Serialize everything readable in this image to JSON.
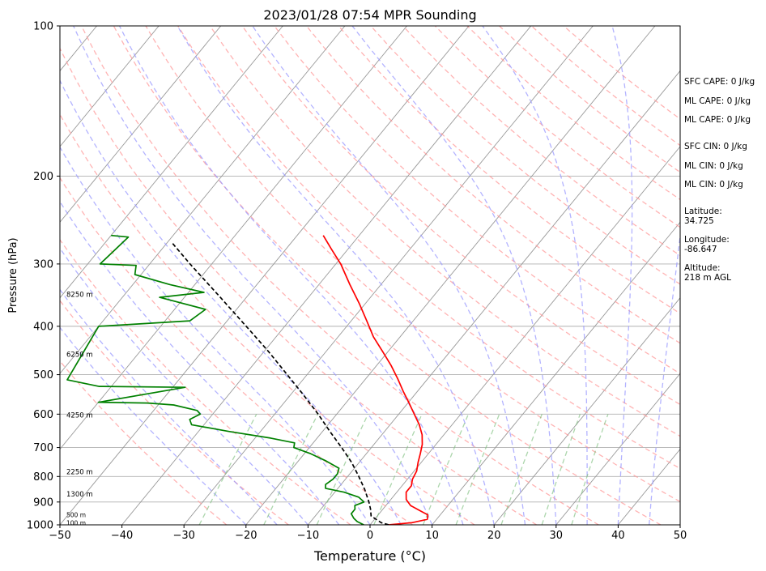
{
  "chart_data": {
    "type": "line",
    "title": "2023/01/28 07:54 MPR Sounding",
    "xlabel": "Temperature (°C)",
    "ylabel": "Pressure (hPa)",
    "xlim": [
      -50,
      50
    ],
    "ylim": [
      1000,
      100
    ],
    "y_scale": "log",
    "grid": true,
    "x_ticks": [
      "−50",
      "−40",
      "−30",
      "−20",
      "−10",
      "0",
      "10",
      "20",
      "30",
      "40",
      "50"
    ],
    "y_ticks": [
      "100",
      "200",
      "300",
      "400",
      "500",
      "600",
      "700",
      "800",
      "900",
      "1000"
    ],
    "series": [
      {
        "role": "temperature",
        "color": "#ff0000",
        "points": [
          [
            1000,
            3.0
          ],
          [
            990,
            6.5
          ],
          [
            975,
            8.5
          ],
          [
            955,
            8.0
          ],
          [
            935,
            6.0
          ],
          [
            915,
            4.0
          ],
          [
            890,
            2.5
          ],
          [
            860,
            1.5
          ],
          [
            835,
            1.5
          ],
          [
            810,
            0.8
          ],
          [
            780,
            0.4
          ],
          [
            750,
            -0.5
          ],
          [
            720,
            -1.3
          ],
          [
            690,
            -2.2
          ],
          [
            660,
            -3.5
          ],
          [
            630,
            -5.3
          ],
          [
            600,
            -7.5
          ],
          [
            570,
            -9.8
          ],
          [
            540,
            -12.3
          ],
          [
            510,
            -14.8
          ],
          [
            480,
            -17.6
          ],
          [
            450,
            -20.8
          ],
          [
            420,
            -24.3
          ],
          [
            390,
            -27.5
          ],
          [
            360,
            -31.0
          ],
          [
            330,
            -35.0
          ],
          [
            300,
            -39.2
          ],
          [
            280,
            -42.7
          ],
          [
            263,
            -45.8
          ]
        ]
      },
      {
        "role": "dewpoint",
        "color": "#008000",
        "points": [
          [
            1000,
            -1.0
          ],
          [
            985,
            -2.5
          ],
          [
            970,
            -3.5
          ],
          [
            950,
            -4.5
          ],
          [
            930,
            -4.5
          ],
          [
            915,
            -5.0
          ],
          [
            900,
            -4.0
          ],
          [
            880,
            -5.5
          ],
          [
            860,
            -8.5
          ],
          [
            845,
            -12.0
          ],
          [
            830,
            -12.5
          ],
          [
            810,
            -12.0
          ],
          [
            790,
            -12.0
          ],
          [
            770,
            -12.5
          ],
          [
            745,
            -15.5
          ],
          [
            720,
            -19.0
          ],
          [
            700,
            -22.5
          ],
          [
            685,
            -23.0
          ],
          [
            670,
            -27.5
          ],
          [
            650,
            -35.0
          ],
          [
            630,
            -42.0
          ],
          [
            615,
            -43.0
          ],
          [
            600,
            -42.0
          ],
          [
            590,
            -43.0
          ],
          [
            575,
            -47.5
          ],
          [
            570,
            -52.0
          ],
          [
            568,
            -60.0
          ],
          [
            530,
            -48.0
          ],
          [
            528,
            -62.0
          ],
          [
            512,
            -68.0
          ],
          [
            400,
            -70.0
          ],
          [
            390,
            -56.0
          ],
          [
            370,
            -55.0
          ],
          [
            350,
            -64.0
          ],
          [
            342,
            -57.5
          ],
          [
            330,
            -64.0
          ],
          [
            315,
            -71.0
          ],
          [
            302,
            -72.0
          ],
          [
            300,
            -78.0
          ],
          [
            265,
            -77.0
          ],
          [
            263,
            -80.0
          ]
        ]
      },
      {
        "role": "parcel",
        "color": "#000000",
        "dashed": true,
        "points": [
          [
            1000,
            3.0
          ],
          [
            990,
            1.5
          ],
          [
            960,
            -1.0
          ],
          [
            930,
            -2.0
          ],
          [
            900,
            -3.2
          ],
          [
            850,
            -5.5
          ],
          [
            800,
            -8.2
          ],
          [
            750,
            -11.2
          ],
          [
            700,
            -14.8
          ],
          [
            650,
            -18.8
          ],
          [
            600,
            -23.0
          ],
          [
            550,
            -27.8
          ],
          [
            500,
            -33.2
          ],
          [
            450,
            -39.2
          ],
          [
            400,
            -46.2
          ],
          [
            350,
            -54.2
          ],
          [
            300,
            -63.5
          ],
          [
            273,
            -69.0
          ]
        ]
      }
    ],
    "background_lines": {
      "dry_adiabats_color": "#ff9999",
      "moist_adiabats_color": "#9999ff",
      "mixing_ratio_color": "#80c080",
      "isotherm_color": "#999999"
    },
    "height_labels": [
      {
        "pressure": 345,
        "text": "8250 m"
      },
      {
        "pressure": 455,
        "text": "6250 m"
      },
      {
        "pressure": 603,
        "text": "4250 m"
      },
      {
        "pressure": 783,
        "text": "2250 m"
      },
      {
        "pressure": 868,
        "text": "1300 m"
      },
      {
        "pressure": 955,
        "text": "500 m"
      },
      {
        "pressure": 990,
        "text": "100 m"
      }
    ],
    "annotations": [
      "SFC CAPE: 0 J/kg",
      "ML CAPE: 0 J/kg",
      "ML CAPE: 0 J/kg",
      "SFC CIN: 0 J/kg",
      "ML CIN: 0 J/kg",
      "ML CIN: 0 J/kg",
      "Latitude:",
      "34.725",
      "Longitude:",
      "-86.647",
      "Altitude:",
      "218 m AGL"
    ]
  }
}
